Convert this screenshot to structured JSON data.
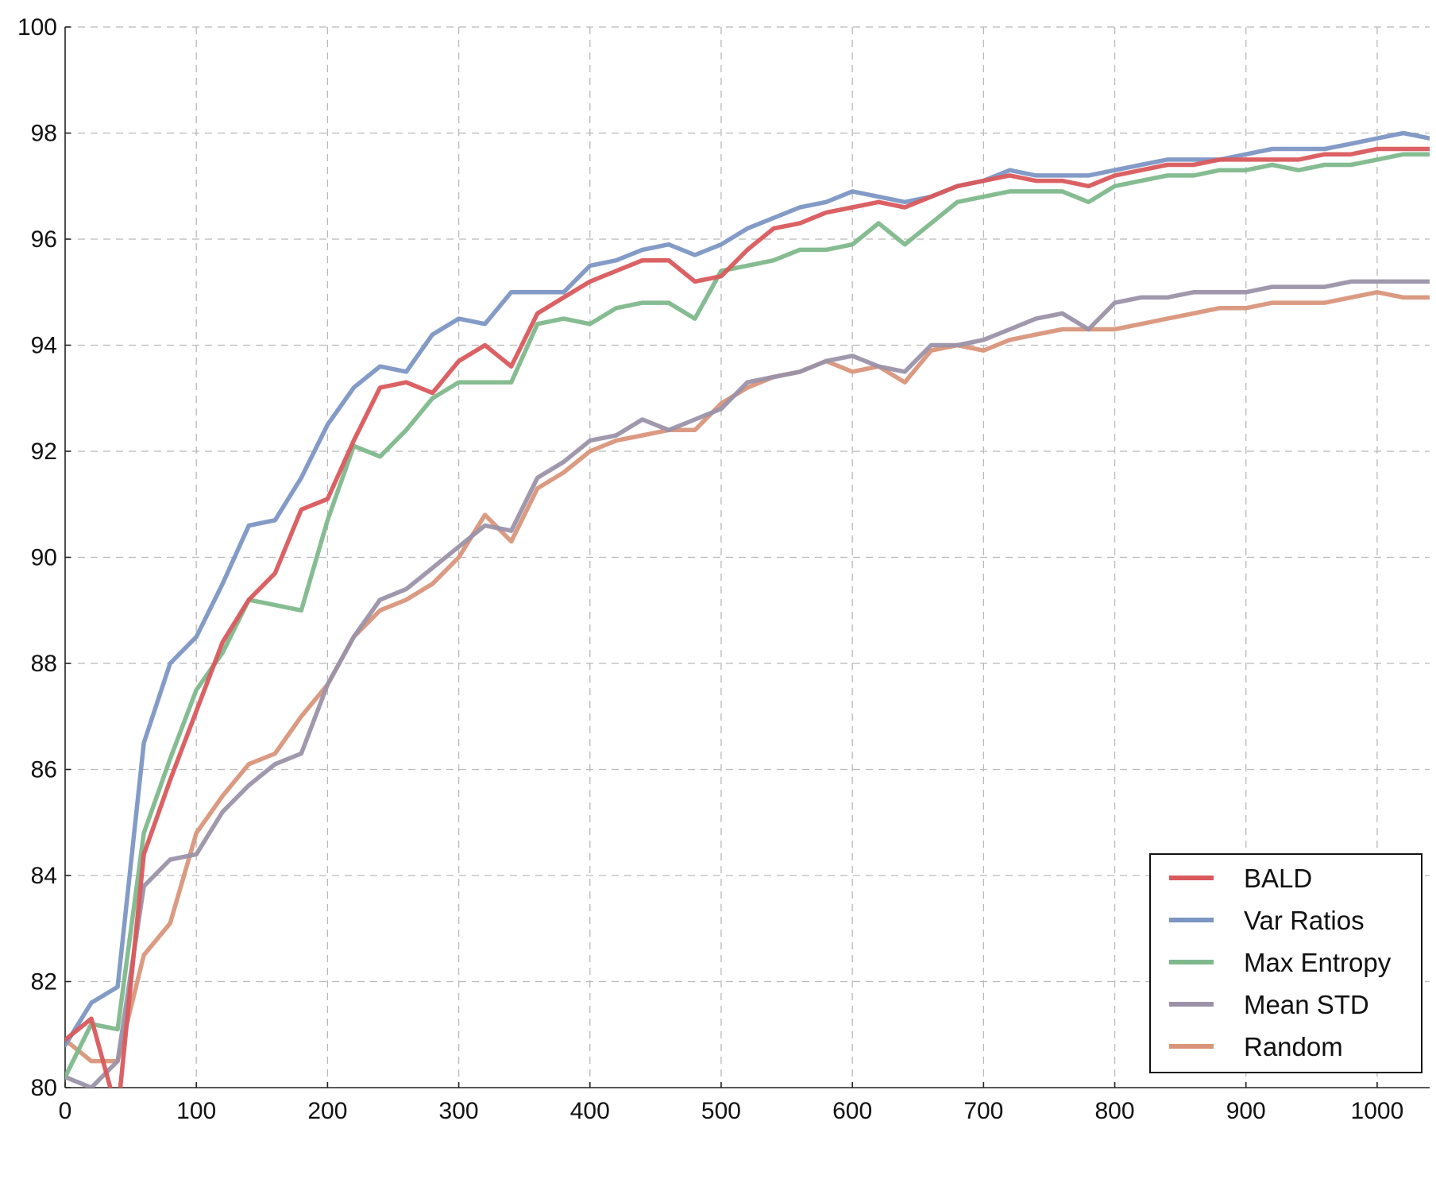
{
  "chart_data": {
    "type": "line",
    "title": "",
    "xlabel": "",
    "ylabel": "",
    "xlim": [
      0,
      1040
    ],
    "ylim": [
      80,
      100
    ],
    "xticks": [
      0,
      100,
      200,
      300,
      400,
      500,
      600,
      700,
      800,
      900,
      1000
    ],
    "yticks": [
      80,
      82,
      84,
      86,
      88,
      90,
      92,
      94,
      96,
      98,
      100
    ],
    "grid": true,
    "legend_position": "lower-right",
    "x": [
      0,
      20,
      40,
      60,
      80,
      100,
      120,
      140,
      160,
      180,
      200,
      220,
      240,
      260,
      280,
      300,
      320,
      340,
      360,
      380,
      400,
      420,
      440,
      460,
      480,
      500,
      520,
      540,
      560,
      580,
      600,
      620,
      640,
      660,
      680,
      700,
      720,
      740,
      760,
      780,
      800,
      820,
      840,
      860,
      880,
      900,
      920,
      940,
      960,
      980,
      1000,
      1020,
      1040
    ],
    "series": [
      {
        "name": "BALD",
        "color": "#d9595c",
        "values": [
          80.9,
          81.3,
          79.5,
          84.4,
          85.8,
          87.1,
          88.4,
          89.2,
          89.7,
          90.9,
          91.1,
          92.2,
          93.2,
          93.3,
          93.1,
          93.7,
          94.0,
          93.6,
          94.6,
          94.9,
          95.2,
          95.4,
          95.6,
          95.6,
          95.2,
          95.3,
          95.8,
          96.2,
          96.3,
          96.5,
          96.6,
          96.7,
          96.6,
          96.8,
          97.0,
          97.1,
          97.2,
          97.1,
          97.1,
          97.0,
          97.2,
          97.3,
          97.4,
          97.4,
          97.5,
          97.5,
          97.5,
          97.5,
          97.6,
          97.6,
          97.7,
          97.7,
          97.7
        ]
      },
      {
        "name": "Var Ratios",
        "color": "#7c96c3",
        "values": [
          80.8,
          81.6,
          81.9,
          86.5,
          88.0,
          88.5,
          89.5,
          90.6,
          90.7,
          91.5,
          92.5,
          93.2,
          93.6,
          93.5,
          94.2,
          94.5,
          94.4,
          95.0,
          95.0,
          95.0,
          95.5,
          95.6,
          95.8,
          95.9,
          95.7,
          95.9,
          96.2,
          96.4,
          96.6,
          96.7,
          96.9,
          96.8,
          96.7,
          96.8,
          97.0,
          97.1,
          97.3,
          97.2,
          97.2,
          97.2,
          97.3,
          97.4,
          97.5,
          97.5,
          97.5,
          97.6,
          97.7,
          97.7,
          97.7,
          97.8,
          97.9,
          98.0,
          97.9
        ]
      },
      {
        "name": "Max Entropy",
        "color": "#7fb88c",
        "values": [
          80.2,
          81.2,
          81.1,
          84.8,
          86.2,
          87.5,
          88.2,
          89.2,
          89.1,
          89.0,
          90.7,
          92.1,
          91.9,
          92.4,
          93.0,
          93.3,
          93.3,
          93.3,
          94.4,
          94.5,
          94.4,
          94.7,
          94.8,
          94.8,
          94.5,
          95.4,
          95.5,
          95.6,
          95.8,
          95.8,
          95.9,
          96.3,
          95.9,
          96.3,
          96.7,
          96.8,
          96.9,
          96.9,
          96.9,
          96.7,
          97.0,
          97.1,
          97.2,
          97.2,
          97.3,
          97.3,
          97.4,
          97.3,
          97.4,
          97.4,
          97.5,
          97.6,
          97.6
        ]
      },
      {
        "name": "Mean STD",
        "color": "#9b92a8",
        "values": [
          80.2,
          80.0,
          80.5,
          83.8,
          84.3,
          84.4,
          85.2,
          85.7,
          86.1,
          86.3,
          87.6,
          88.5,
          89.2,
          89.4,
          89.8,
          90.2,
          90.6,
          90.5,
          91.5,
          91.8,
          92.2,
          92.3,
          92.6,
          92.4,
          92.6,
          92.8,
          93.3,
          93.4,
          93.5,
          93.7,
          93.8,
          93.6,
          93.5,
          94.0,
          94.0,
          94.1,
          94.3,
          94.5,
          94.6,
          94.3,
          94.8,
          94.9,
          94.9,
          95.0,
          95.0,
          95.0,
          95.1,
          95.1,
          95.1,
          95.2,
          95.2,
          95.2,
          95.2
        ]
      },
      {
        "name": "Random",
        "color": "#d9957b",
        "values": [
          80.9,
          80.5,
          80.5,
          82.5,
          83.1,
          84.8,
          85.5,
          86.1,
          86.3,
          87.0,
          87.6,
          88.5,
          89.0,
          89.2,
          89.5,
          90.0,
          90.8,
          90.3,
          91.3,
          91.6,
          92.0,
          92.2,
          92.3,
          92.4,
          92.4,
          92.9,
          93.2,
          93.4,
          93.5,
          93.7,
          93.5,
          93.6,
          93.3,
          93.9,
          94.0,
          93.9,
          94.1,
          94.2,
          94.3,
          94.3,
          94.3,
          94.4,
          94.5,
          94.6,
          94.7,
          94.7,
          94.8,
          94.8,
          94.8,
          94.9,
          95.0,
          94.9,
          94.9
        ]
      }
    ]
  }
}
